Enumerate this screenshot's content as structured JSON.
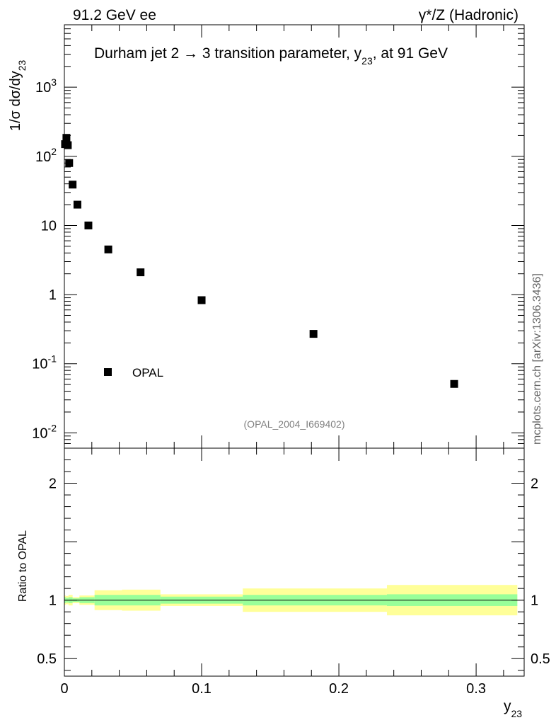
{
  "header": {
    "left": "91.2 GeV ee",
    "right": "γ*/Z (Hadronic)"
  },
  "plot_title": {
    "main": "Durham jet 2 →  3 transition parameter, y",
    "sub": "23",
    "tail": ", at 91 GeV"
  },
  "y_axis_label": {
    "main": "1/σ  dσ/dy",
    "sub": "23"
  },
  "x_axis_label": {
    "main": "y",
    "sub": "23"
  },
  "ratio_axis_label": "Ratio to OPAL",
  "side_label": "mcplots.cern.ch [arXiv:1306.3436]",
  "analysis_tag": "(OPAL_2004_I669402)",
  "legend": {
    "entry": "OPAL"
  },
  "colors": {
    "data_marker": "#000000",
    "band_inner": "#99ff99",
    "band_outer": "#ffff99",
    "analysis_tag": "#808080"
  },
  "chart_data": [
    {
      "type": "scatter",
      "panel": "main",
      "title": "Durham jet 2 →  3 transition parameter, y23, at 91 GeV",
      "ylabel": "1/σ dσ/dy23",
      "xlim": [
        0,
        0.335
      ],
      "ylim": [
        0.006,
        8000
      ],
      "yscale": "log",
      "x_tick_labels": [
        "0",
        "0.1",
        "0.2",
        "0.3"
      ],
      "y_tick_labels": [
        "10^-2",
        "10^-1",
        "1",
        "10",
        "10^2",
        "10^3"
      ],
      "legend_position": "bottom-left",
      "series": [
        {
          "name": "OPAL",
          "x": [
            0.0005,
            0.0015,
            0.0025,
            0.0035,
            0.006,
            0.0095,
            0.0175,
            0.032,
            0.0555,
            0.1,
            0.1815,
            0.284
          ],
          "y": [
            150,
            185,
            145,
            80,
            39,
            20,
            10,
            4.5,
            2.1,
            0.83,
            0.27,
            0.051
          ]
        }
      ]
    },
    {
      "type": "area",
      "panel": "ratio",
      "ylabel": "Ratio to OPAL",
      "xlabel": "y23",
      "xlim": [
        0,
        0.335
      ],
      "ylim": [
        0.35,
        2.3
      ],
      "x_tick_labels": [
        "0",
        "0.1",
        "0.2",
        "0.3"
      ],
      "y_tick_labels": [
        "0.5",
        "1",
        "2"
      ],
      "reference_line": 1,
      "bins": [
        {
          "x0": 0.0,
          "x1": 0.001,
          "inner": [
            0.975,
            1.025
          ],
          "outer": [
            0.96,
            1.04
          ]
        },
        {
          "x0": 0.001,
          "x1": 0.002,
          "inner": [
            0.98,
            1.02
          ],
          "outer": [
            0.965,
            1.035
          ]
        },
        {
          "x0": 0.002,
          "x1": 0.003,
          "inner": [
            0.98,
            1.02
          ],
          "outer": [
            0.965,
            1.035
          ]
        },
        {
          "x0": 0.003,
          "x1": 0.006,
          "inner": [
            0.975,
            1.025
          ],
          "outer": [
            0.955,
            1.045
          ]
        },
        {
          "x0": 0.006,
          "x1": 0.011,
          "inner": [
            0.985,
            1.015
          ],
          "outer": [
            0.975,
            1.025
          ]
        },
        {
          "x0": 0.011,
          "x1": 0.022,
          "inner": [
            0.975,
            1.025
          ],
          "outer": [
            0.96,
            1.04
          ]
        },
        {
          "x0": 0.022,
          "x1": 0.042,
          "inner": [
            0.955,
            1.045
          ],
          "outer": [
            0.915,
            1.085
          ]
        },
        {
          "x0": 0.042,
          "x1": 0.07,
          "inner": [
            0.955,
            1.045
          ],
          "outer": [
            0.91,
            1.09
          ]
        },
        {
          "x0": 0.07,
          "x1": 0.13,
          "inner": [
            0.97,
            1.03
          ],
          "outer": [
            0.95,
            1.05
          ]
        },
        {
          "x0": 0.13,
          "x1": 0.235,
          "inner": [
            0.955,
            1.045
          ],
          "outer": [
            0.9,
            1.1
          ]
        },
        {
          "x0": 0.235,
          "x1": 0.33,
          "inner": [
            0.95,
            1.05
          ],
          "outer": [
            0.87,
            1.13
          ]
        }
      ]
    }
  ]
}
